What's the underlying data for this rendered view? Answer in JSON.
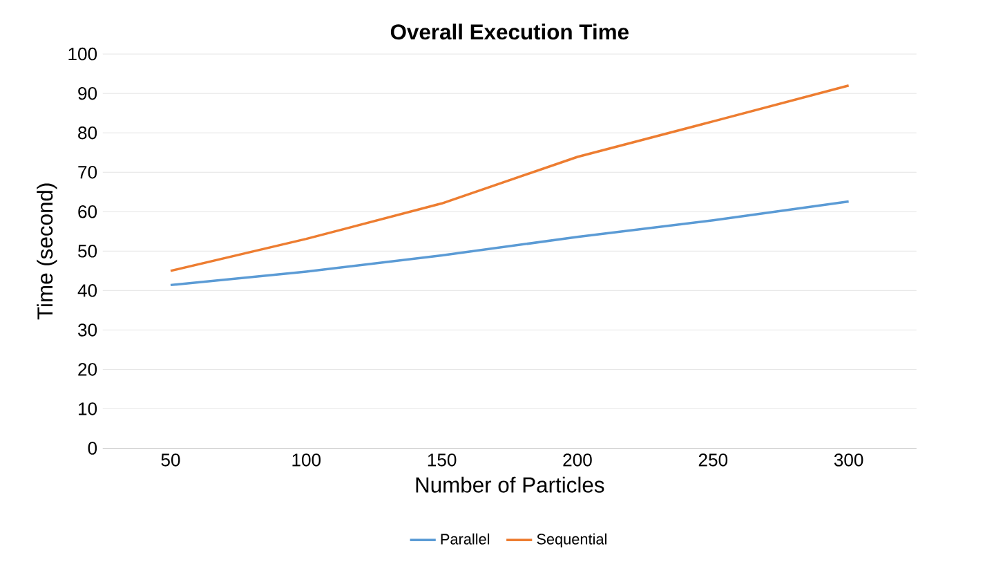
{
  "chart_data": {
    "type": "line",
    "title": "Overall Execution Time",
    "xlabel": "Number of Particles",
    "ylabel": "Time (second)",
    "categories": [
      "50",
      "100",
      "150",
      "200",
      "250",
      "300"
    ],
    "series": [
      {
        "name": "Parallel",
        "color": "#5b9bd5",
        "values": [
          41.4,
          44.8,
          48.9,
          53.6,
          57.8,
          62.6
        ]
      },
      {
        "name": "Sequential",
        "color": "#ed7d31",
        "values": [
          45.0,
          53.1,
          62.1,
          73.9,
          82.9,
          92.0
        ]
      }
    ],
    "ylim": [
      0,
      100
    ],
    "yticks": [
      0,
      10,
      20,
      30,
      40,
      50,
      60,
      70,
      80,
      90,
      100
    ],
    "grid": "y",
    "legend": "bottom",
    "marker": "none",
    "line_style": "solid"
  }
}
